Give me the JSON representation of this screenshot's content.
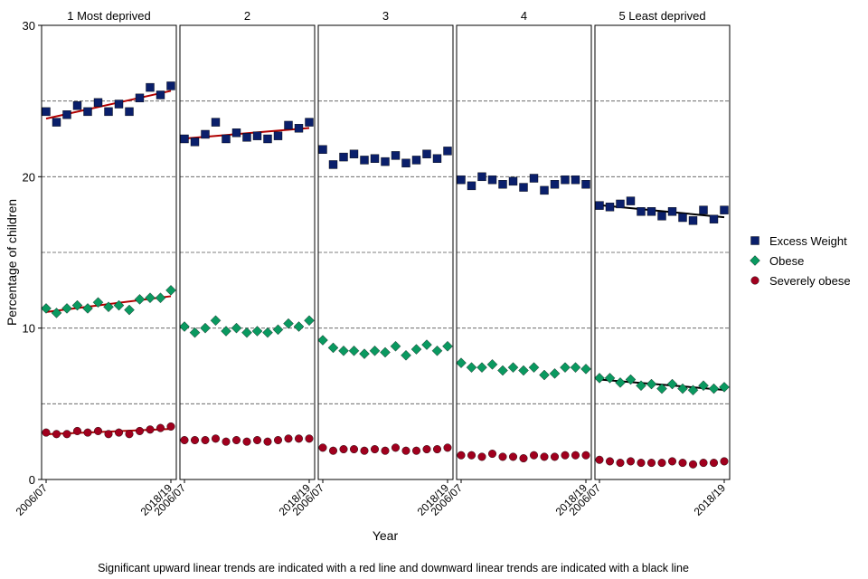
{
  "chart_data": {
    "type": "scatter",
    "title": "",
    "xlabel": "Year",
    "ylabel": "Percentage of children",
    "ylim": [
      0,
      30
    ],
    "y_ticks": [
      "0",
      "10",
      "20",
      "30"
    ],
    "x_tick_labels": [
      "2006/07",
      "2018/19"
    ],
    "x": [
      "2006/07",
      "2007/08",
      "2008/09",
      "2009/10",
      "2010/11",
      "2011/12",
      "2012/13",
      "2013/14",
      "2014/15",
      "2015/16",
      "2016/17",
      "2017/18",
      "2018/19"
    ],
    "grid": "dashed horizontal at 5, 10, 15, 20, 25",
    "legend_position": "right",
    "panels": [
      {
        "title": "1 Most deprived",
        "series": [
          {
            "name": "Excess Weight",
            "values": [
              24.3,
              23.6,
              24.1,
              24.7,
              24.3,
              24.9,
              24.3,
              24.8,
              24.3,
              25.2,
              25.9,
              25.4,
              26.0
            ],
            "trend": "up"
          },
          {
            "name": "Obese",
            "values": [
              11.3,
              11.0,
              11.3,
              11.5,
              11.3,
              11.7,
              11.4,
              11.5,
              11.2,
              11.9,
              12.0,
              12.0,
              12.5
            ],
            "trend": "up"
          },
          {
            "name": "Severely obese",
            "values": [
              3.1,
              3.0,
              3.0,
              3.2,
              3.1,
              3.2,
              3.0,
              3.1,
              3.0,
              3.2,
              3.3,
              3.4,
              3.5
            ],
            "trend": "up"
          }
        ]
      },
      {
        "title": "2",
        "series": [
          {
            "name": "Excess Weight",
            "values": [
              22.5,
              22.3,
              22.8,
              23.6,
              22.5,
              22.9,
              22.6,
              22.7,
              22.5,
              22.7,
              23.4,
              23.2,
              23.6
            ],
            "trend": "up"
          },
          {
            "name": "Obese",
            "values": [
              10.1,
              9.7,
              10.0,
              10.5,
              9.8,
              10.0,
              9.7,
              9.8,
              9.7,
              9.9,
              10.3,
              10.1,
              10.5
            ],
            "trend": "none"
          },
          {
            "name": "Severely obese",
            "values": [
              2.6,
              2.6,
              2.6,
              2.7,
              2.5,
              2.6,
              2.5,
              2.6,
              2.5,
              2.6,
              2.7,
              2.7,
              2.7
            ],
            "trend": "none"
          }
        ]
      },
      {
        "title": "3",
        "series": [
          {
            "name": "Excess Weight",
            "values": [
              21.8,
              20.8,
              21.3,
              21.5,
              21.1,
              21.2,
              21.0,
              21.4,
              20.9,
              21.1,
              21.5,
              21.2,
              21.7
            ],
            "trend": "none"
          },
          {
            "name": "Obese",
            "values": [
              9.2,
              8.7,
              8.5,
              8.5,
              8.3,
              8.5,
              8.4,
              8.8,
              8.2,
              8.6,
              8.9,
              8.5,
              8.8
            ],
            "trend": "none"
          },
          {
            "name": "Severely obese",
            "values": [
              2.1,
              1.9,
              2.0,
              2.0,
              1.9,
              2.0,
              1.9,
              2.1,
              1.9,
              1.9,
              2.0,
              2.0,
              2.1
            ],
            "trend": "none"
          }
        ]
      },
      {
        "title": "4",
        "series": [
          {
            "name": "Excess Weight",
            "values": [
              19.8,
              19.4,
              20.0,
              19.8,
              19.5,
              19.7,
              19.3,
              19.9,
              19.1,
              19.5,
              19.8,
              19.8,
              19.5
            ],
            "trend": "none"
          },
          {
            "name": "Obese",
            "values": [
              7.7,
              7.4,
              7.4,
              7.6,
              7.2,
              7.4,
              7.2,
              7.4,
              6.9,
              7.0,
              7.4,
              7.4,
              7.3
            ],
            "trend": "none"
          },
          {
            "name": "Severely obese",
            "values": [
              1.6,
              1.6,
              1.5,
              1.7,
              1.5,
              1.5,
              1.4,
              1.6,
              1.5,
              1.5,
              1.6,
              1.6,
              1.6
            ],
            "trend": "none"
          }
        ]
      },
      {
        "title": "5 Least deprived",
        "series": [
          {
            "name": "Excess Weight",
            "values": [
              18.1,
              18.0,
              18.2,
              18.4,
              17.7,
              17.7,
              17.4,
              17.7,
              17.3,
              17.1,
              17.8,
              17.2,
              17.8
            ],
            "trend": "down"
          },
          {
            "name": "Obese",
            "values": [
              6.7,
              6.7,
              6.4,
              6.6,
              6.2,
              6.3,
              6.0,
              6.3,
              6.0,
              5.9,
              6.2,
              6.0,
              6.1
            ],
            "trend": "down"
          },
          {
            "name": "Severely obese",
            "values": [
              1.3,
              1.2,
              1.1,
              1.2,
              1.1,
              1.1,
              1.1,
              1.2,
              1.1,
              1.0,
              1.1,
              1.1,
              1.2
            ],
            "trend": "none"
          }
        ]
      }
    ],
    "legend": [
      {
        "name": "Excess Weight",
        "marker": "square",
        "color": "#0a1f6b"
      },
      {
        "name": "Obese",
        "marker": "diamond",
        "color": "#0a9960"
      },
      {
        "name": "Severely obese",
        "marker": "circle",
        "color": "#a0001e"
      }
    ],
    "trend_colors": {
      "up": "#b00000",
      "down": "#000000"
    },
    "caption": "Significant upward linear trends are indicated with a red line and downward linear trends are indicated with a black line"
  }
}
